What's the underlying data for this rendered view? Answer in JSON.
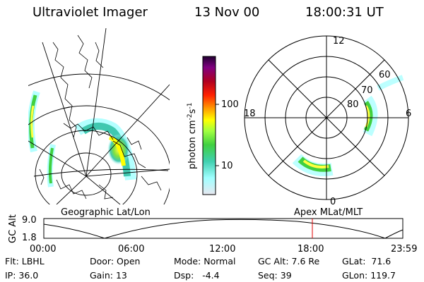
{
  "header": {
    "title": "Ultraviolet Imager",
    "date": "13 Nov 00",
    "time": "18:00:31 UT"
  },
  "colorbar": {
    "label_base": "photon cm",
    "label_exp1": "-2",
    "label_mid": "s",
    "label_exp2": "-1",
    "ticks": [
      {
        "value": 100,
        "label": "100"
      },
      {
        "value": 10,
        "label": "10"
      }
    ],
    "colors": [
      "#d8d8e8",
      "#a0ffff",
      "#40d0b0",
      "#40d040",
      "#a0ff40",
      "#ffff00",
      "#ffa000",
      "#ff2000",
      "#b00020",
      "#800080",
      "#300040"
    ]
  },
  "polar_plot": {
    "labels": {
      "top": "12",
      "left": "18",
      "right": "6",
      "bottom": "0"
    },
    "lat_labels": [
      "60",
      "70",
      "80"
    ]
  },
  "geo_plot": {
    "label": "Geographic Lat/Lon"
  },
  "mag_label": "Apex MLat/MLT",
  "alt_plot": {
    "ylabel": "GC Alt",
    "y_ticks": [
      "9.0",
      "1.8"
    ],
    "x_ticks": [
      "00:00",
      "06:00",
      "12:00",
      "18:00",
      "23:59"
    ],
    "marker_color": "#e00000"
  },
  "info": {
    "flt": {
      "label": "Flt:",
      "value": "LBHL"
    },
    "ip": {
      "label": "IP:",
      "value": "36.0"
    },
    "door": {
      "label": "Door:",
      "value": "Open"
    },
    "gain": {
      "label": "Gain:",
      "value": "13"
    },
    "mode": {
      "label": "Mode:",
      "value": "Normal"
    },
    "dsp": {
      "label": "Dsp:",
      "value": "-4.4"
    },
    "gcalt": {
      "label": "GC Alt:",
      "value": "7.6 Re"
    },
    "seq": {
      "label": "Seq:",
      "value": "39"
    },
    "glat": {
      "label": "GLat:",
      "value": "71.6"
    },
    "glon": {
      "label": "GLon:",
      "value": "119.7"
    }
  }
}
